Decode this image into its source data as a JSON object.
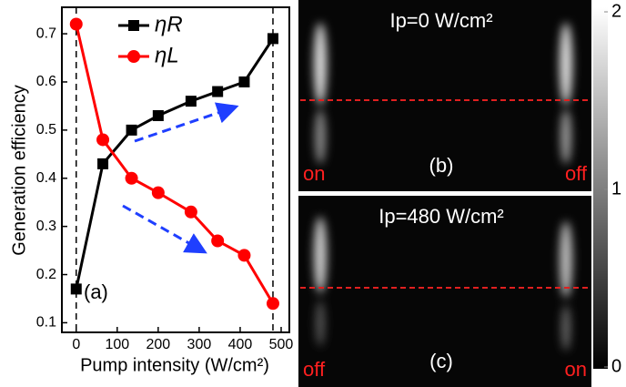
{
  "chart_data": {
    "type": "line",
    "xlabel": "Pump intensity (W/cm²)",
    "ylabel": "Generation efficiency",
    "annotation": "(a)",
    "x": [
      0,
      65,
      135,
      200,
      280,
      345,
      410,
      480
    ],
    "series": [
      {
        "name": "ηR",
        "color": "#000000",
        "marker": "square",
        "values": [
          0.17,
          0.43,
          0.5,
          0.53,
          0.56,
          0.58,
          0.6,
          0.69
        ]
      },
      {
        "name": "ηL",
        "color": "#ff0000",
        "marker": "circle",
        "values": [
          0.72,
          0.48,
          0.4,
          0.37,
          0.33,
          0.27,
          0.24,
          0.14
        ]
      }
    ],
    "xlim": [
      -35,
      520
    ],
    "ylim": [
      0.08,
      0.755
    ],
    "xticks": [
      0,
      100,
      200,
      300,
      400,
      500
    ],
    "yticks": [
      0.1,
      0.2,
      0.3,
      0.4,
      0.5,
      0.6,
      0.7
    ],
    "vlines": [
      0,
      480
    ],
    "legend": "upper center"
  },
  "images": {
    "panels": [
      {
        "title": "Ip=0 W/cm²",
        "label": "(b)",
        "left": "on",
        "right": "off"
      },
      {
        "title": "Ip=480 W/cm²",
        "label": "(c)",
        "left": "off",
        "right": "on"
      }
    ],
    "colorbar": {
      "lim": [
        0,
        2
      ],
      "ticks": [
        0,
        1,
        2
      ]
    }
  }
}
